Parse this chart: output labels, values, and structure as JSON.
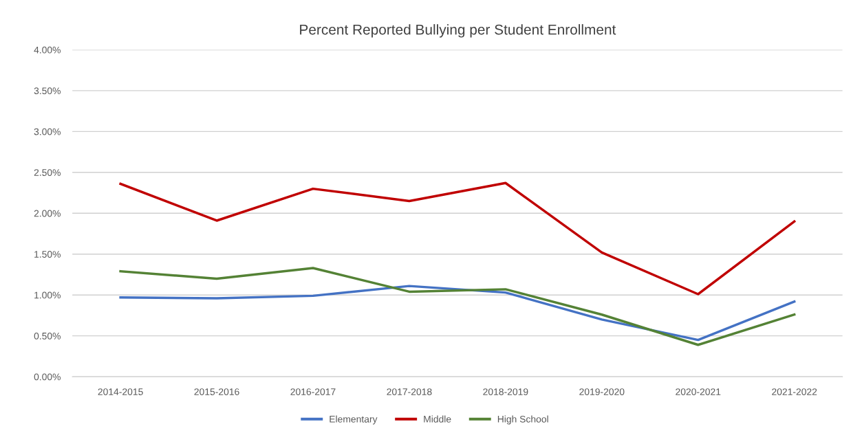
{
  "chart_data": {
    "type": "line",
    "title": "Percent Reported Bullying per Student Enrollment",
    "categories": [
      "2014-2015",
      "2015-2016",
      "2016-2017",
      "2017-2018",
      "2018-2019",
      "2019-2020",
      "2020-2021",
      "2021-2022"
    ],
    "series": [
      {
        "name": "Elementary",
        "color": "#4472c4",
        "values": [
          0.97,
          0.96,
          0.99,
          1.11,
          1.03,
          0.7,
          0.45,
          0.92
        ]
      },
      {
        "name": "Middle",
        "color": "#c00000",
        "values": [
          2.36,
          1.91,
          2.3,
          2.15,
          2.37,
          1.52,
          1.01,
          1.9
        ]
      },
      {
        "name": "High School",
        "color": "#548235",
        "values": [
          1.29,
          1.2,
          1.33,
          1.04,
          1.07,
          0.76,
          0.39,
          0.76
        ]
      }
    ],
    "ylim": [
      0,
      4
    ],
    "yticks": [
      {
        "value": 0,
        "label": "0.00%"
      },
      {
        "value": 0.5,
        "label": "0.50%"
      },
      {
        "value": 1,
        "label": "1.00%"
      },
      {
        "value": 1.5,
        "label": "1.50%"
      },
      {
        "value": 2,
        "label": "2.00%"
      },
      {
        "value": 2.5,
        "label": "2.50%"
      },
      {
        "value": 3,
        "label": "3.00%"
      },
      {
        "value": 3.5,
        "label": "3.50%"
      },
      {
        "value": 4,
        "label": "4.00%"
      }
    ],
    "grid": "y",
    "legend": "bottom",
    "marker": "none",
    "line_style": "solid"
  }
}
